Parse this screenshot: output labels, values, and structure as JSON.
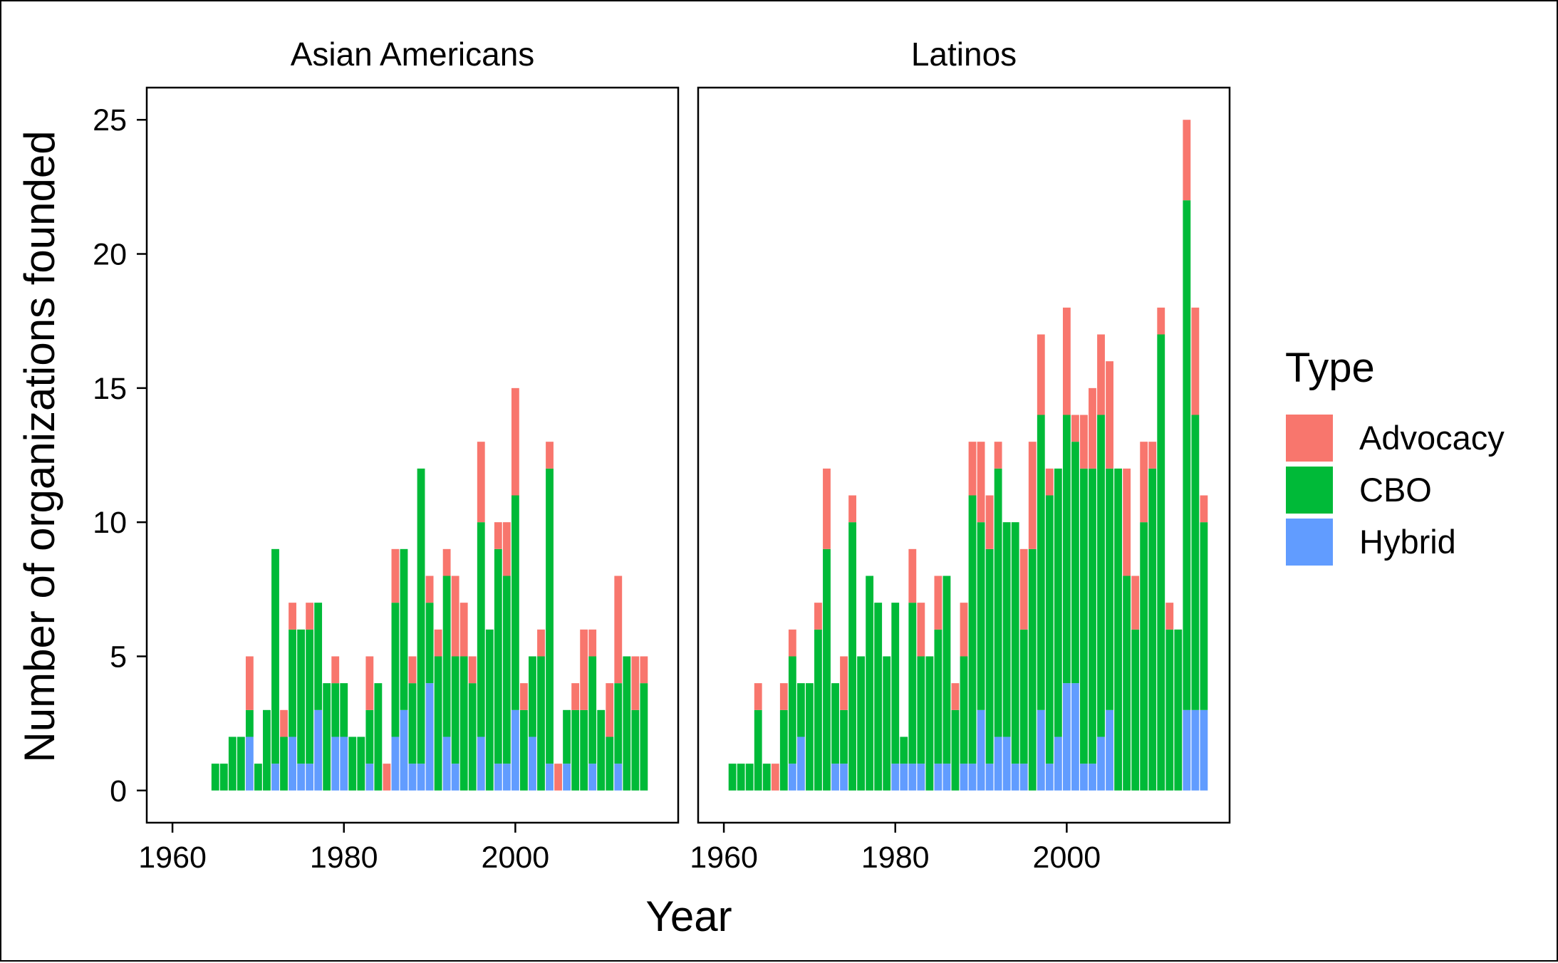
{
  "chart_data": {
    "type": "bar",
    "stacked": true,
    "xlabel": "Year",
    "ylabel": "Number of organizations founded",
    "xlim": [
      1957,
      2019
    ],
    "ylim": [
      -1.2,
      26.2
    ],
    "x_ticks": [
      1960,
      1980,
      2000
    ],
    "y_ticks": [
      0,
      5,
      10,
      15,
      20,
      25
    ],
    "grid": false,
    "legend": {
      "title": "Type",
      "position": "right",
      "entries": [
        {
          "name": "Advocacy",
          "color": "#F8766D"
        },
        {
          "name": "CBO",
          "color": "#00BA38"
        },
        {
          "name": "Hybrid",
          "color": "#619CFF"
        }
      ]
    },
    "stack_order_bottom_to_top": [
      "Hybrid",
      "CBO",
      "Advocacy"
    ],
    "panels": [
      {
        "title": "Asian Americans",
        "x": [
          1965,
          1966,
          1967,
          1968,
          1969,
          1970,
          1971,
          1972,
          1973,
          1974,
          1975,
          1976,
          1977,
          1978,
          1979,
          1980,
          1981,
          1982,
          1983,
          1984,
          1985,
          1986,
          1987,
          1988,
          1989,
          1990,
          1991,
          1992,
          1993,
          1994,
          1995,
          1996,
          1997,
          1998,
          1999,
          2000,
          2001,
          2002,
          2003,
          2004,
          2005,
          2006,
          2007,
          2008,
          2009,
          2010,
          2011,
          2012,
          2013,
          2014,
          2015
        ],
        "series": [
          {
            "name": "Hybrid",
            "values": [
              0,
              0,
              0,
              0,
              2,
              0,
              0,
              1,
              0,
              2,
              1,
              1,
              3,
              0,
              2,
              2,
              0,
              0,
              1,
              0,
              0,
              2,
              3,
              1,
              1,
              4,
              0,
              2,
              1,
              0,
              0,
              2,
              0,
              1,
              1,
              3,
              0,
              2,
              0,
              1,
              0,
              1,
              0,
              0,
              1,
              0,
              0,
              1,
              0,
              0,
              0
            ]
          },
          {
            "name": "CBO",
            "values": [
              1,
              1,
              2,
              2,
              1,
              1,
              3,
              8,
              2,
              4,
              5,
              5,
              4,
              4,
              2,
              2,
              2,
              2,
              2,
              4,
              0,
              5,
              6,
              3,
              11,
              3,
              5,
              6,
              4,
              5,
              4,
              8,
              6,
              8,
              7,
              8,
              3,
              3,
              5,
              11,
              0,
              2,
              3,
              3,
              4,
              3,
              2,
              3,
              5,
              3,
              4
            ]
          },
          {
            "name": "Advocacy",
            "values": [
              0,
              0,
              0,
              0,
              2,
              0,
              0,
              0,
              1,
              1,
              0,
              1,
              0,
              0,
              1,
              0,
              0,
              0,
              2,
              0,
              1,
              2,
              0,
              1,
              0,
              1,
              1,
              1,
              3,
              2,
              1,
              3,
              0,
              1,
              2,
              4,
              1,
              0,
              1,
              1,
              1,
              0,
              1,
              3,
              1,
              0,
              2,
              4,
              0,
              2,
              1
            ]
          }
        ]
      },
      {
        "title": "Latinos",
        "x": [
          1961,
          1962,
          1963,
          1964,
          1965,
          1966,
          1967,
          1968,
          1969,
          1970,
          1971,
          1972,
          1973,
          1974,
          1975,
          1976,
          1977,
          1978,
          1979,
          1980,
          1981,
          1982,
          1983,
          1984,
          1985,
          1986,
          1987,
          1988,
          1989,
          1990,
          1991,
          1992,
          1993,
          1994,
          1995,
          1996,
          1997,
          1998,
          1999,
          2000,
          2001,
          2002,
          2003,
          2004,
          2005,
          2006,
          2007,
          2008,
          2009,
          2010,
          2011,
          2012,
          2013,
          2014,
          2015,
          2016
        ],
        "series": [
          {
            "name": "Hybrid",
            "values": [
              0,
              0,
              0,
              0,
              0,
              0,
              0,
              1,
              2,
              0,
              0,
              0,
              1,
              1,
              0,
              0,
              0,
              0,
              0,
              1,
              1,
              1,
              1,
              0,
              1,
              1,
              0,
              1,
              1,
              3,
              1,
              2,
              2,
              1,
              1,
              0,
              3,
              1,
              2,
              4,
              4,
              1,
              1,
              2,
              3,
              0,
              0,
              0,
              0,
              0,
              0,
              0,
              0,
              3,
              3,
              3
            ]
          },
          {
            "name": "CBO",
            "values": [
              1,
              1,
              1,
              3,
              1,
              0,
              3,
              4,
              2,
              4,
              6,
              9,
              3,
              2,
              10,
              5,
              8,
              7,
              5,
              6,
              1,
              6,
              4,
              5,
              5,
              7,
              3,
              4,
              10,
              7,
              8,
              10,
              8,
              9,
              5,
              9,
              11,
              10,
              10,
              10,
              9,
              11,
              11,
              12,
              9,
              12,
              8,
              6,
              10,
              12,
              17,
              6,
              6,
              19,
              11,
              7
            ]
          },
          {
            "name": "Advocacy",
            "values": [
              0,
              0,
              0,
              1,
              0,
              1,
              1,
              1,
              0,
              0,
              1,
              3,
              0,
              2,
              1,
              0,
              0,
              0,
              0,
              0,
              0,
              2,
              2,
              0,
              2,
              0,
              1,
              2,
              2,
              3,
              2,
              1,
              0,
              0,
              3,
              4,
              3,
              1,
              0,
              4,
              1,
              2,
              3,
              3,
              4,
              0,
              4,
              2,
              3,
              1,
              1,
              1,
              0,
              3,
              4,
              1
            ]
          }
        ]
      }
    ]
  }
}
